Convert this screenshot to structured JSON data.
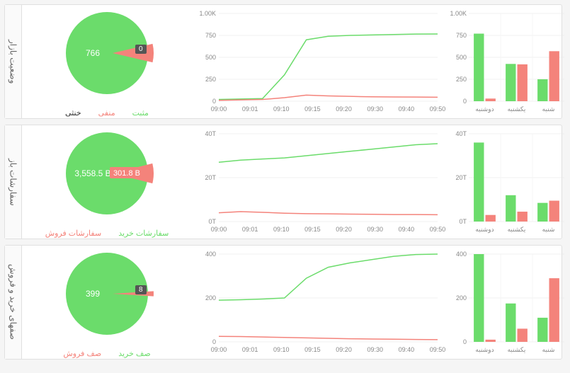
{
  "global": {
    "colors": {
      "green": "#6bdc6b",
      "red": "#f4837b",
      "dark": "#555555",
      "grid": "#e5e5e5",
      "axis": "#888888",
      "bg": "#ffffff"
    },
    "time_ticks": [
      "09:00",
      "09:01",
      "09:10",
      "09:15",
      "09:20",
      "09:30",
      "09:40",
      "09:50"
    ]
  },
  "panels": [
    {
      "key": "market-status",
      "title": "وضعیت بازار",
      "pie": {
        "green_value": 766,
        "red_value": 60,
        "dark_value": 0,
        "green_label_text": "766",
        "dark_badge_text": "0",
        "legend": [
          {
            "text": "مثبت",
            "color": "#6bdc6b"
          },
          {
            "text": "منفی",
            "color": "#f4837b"
          },
          {
            "text": "خنثی",
            "color": "#303030"
          }
        ]
      },
      "line": {
        "ymax": 1000,
        "ytick_step": 250,
        "y_label_fmt": "K",
        "green_series": [
          20,
          25,
          30,
          300,
          700,
          740,
          750,
          755,
          760,
          765,
          766
        ],
        "red_series": [
          10,
          15,
          20,
          40,
          70,
          60,
          55,
          50,
          48,
          47,
          45
        ]
      },
      "bar": {
        "ymax": 1000,
        "ytick_step": 250,
        "y_label_fmt": "K",
        "categories": [
          "دوشنبه",
          "یکشنبه",
          "شنبه"
        ],
        "green": [
          770,
          425,
          250
        ],
        "red": [
          30,
          420,
          570
        ]
      }
    },
    {
      "key": "open-orders",
      "title": "سفارشات باز",
      "pie": {
        "green_value": 3558.5,
        "red_value": 301.8,
        "dark_value": 0,
        "green_label_text": "3,558.5 B",
        "red_label_text": "301.8 B",
        "legend": [
          {
            "text": "سفارشات خرید",
            "color": "#6bdc6b"
          },
          {
            "text": "سفارشات فروش",
            "color": "#f4837b"
          }
        ]
      },
      "line": {
        "ymax": 40,
        "ytick_step": 20,
        "y_label_fmt": "T",
        "green_series": [
          27,
          28,
          28.5,
          29,
          30,
          31,
          32,
          33,
          34,
          35,
          35.5
        ],
        "red_series": [
          4,
          4.5,
          4.2,
          3.8,
          3.6,
          3.5,
          3.4,
          3.3,
          3.2,
          3.2,
          3.1
        ]
      },
      "bar": {
        "ymax": 40,
        "ytick_step": 20,
        "y_label_fmt": "T",
        "categories": [
          "دوشنبه",
          "یکشنبه",
          "شنبه"
        ],
        "green": [
          36,
          12,
          8.5
        ],
        "red": [
          3,
          4.5,
          9.5
        ]
      }
    },
    {
      "key": "queues",
      "title": "صفهای خرید و فروش",
      "pie": {
        "green_value": 399,
        "red_value": 8,
        "dark_value": 0,
        "green_label_text": "399",
        "dark_badge_text": "8",
        "legend": [
          {
            "text": "صف خرید",
            "color": "#6bdc6b"
          },
          {
            "text": "صف فروش",
            "color": "#f4837b"
          }
        ]
      },
      "line": {
        "ymax": 400,
        "ytick_step": 200,
        "y_label_fmt": "",
        "green_series": [
          190,
          192,
          195,
          200,
          290,
          340,
          360,
          375,
          390,
          398,
          400
        ],
        "red_series": [
          25,
          24,
          22,
          20,
          18,
          16,
          14,
          13,
          12,
          11,
          10
        ]
      },
      "bar": {
        "ymax": 400,
        "ytick_step": 200,
        "y_label_fmt": "",
        "categories": [
          "دوشنبه",
          "یکشنبه",
          "شنبه"
        ],
        "green": [
          400,
          175,
          110
        ],
        "red": [
          10,
          60,
          290
        ]
      }
    }
  ]
}
